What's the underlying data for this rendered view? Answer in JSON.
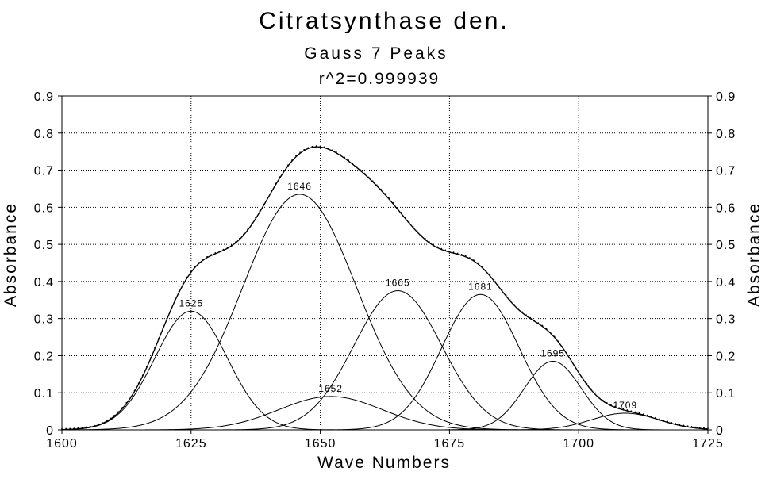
{
  "chart_data": {
    "type": "line",
    "title": "Citratsynthase den.",
    "subtitle": "Gauss 7 Peaks",
    "fit_quality": "r^2=0.999939",
    "xlabel": "Wave Numbers",
    "ylabel": "Absorbance",
    "ylabel_right": "Absorbance",
    "xlim": [
      1600,
      1725
    ],
    "ylim": [
      0,
      0.9
    ],
    "x_ticks": [
      1600,
      1625,
      1650,
      1675,
      1700,
      1725
    ],
    "x_tick_labels": [
      "1600",
      "1625",
      "1650",
      "1675",
      "1700",
      "1725"
    ],
    "y_ticks": [
      0,
      0.1,
      0.2,
      0.3,
      0.4,
      0.5,
      0.6,
      0.7,
      0.8,
      0.9
    ],
    "y_tick_labels": [
      "0",
      "0.1",
      "0.2",
      "0.3",
      "0.4",
      "0.5",
      "0.6",
      "0.7",
      "0.8",
      "0.9"
    ],
    "grid": true,
    "peaks": [
      {
        "label": "1625",
        "center": 1625,
        "amplitude": 0.32,
        "sigma": 7.0
      },
      {
        "label": "1646",
        "center": 1646,
        "amplitude": 0.635,
        "sigma": 11.0
      },
      {
        "label": "1652",
        "center": 1652,
        "amplitude": 0.09,
        "sigma": 10.0
      },
      {
        "label": "1665",
        "center": 1665,
        "amplitude": 0.375,
        "sigma": 8.5
      },
      {
        "label": "1681",
        "center": 1681,
        "amplitude": 0.365,
        "sigma": 7.5
      },
      {
        "label": "1695",
        "center": 1695,
        "amplitude": 0.185,
        "sigma": 5.5
      },
      {
        "label": "1709",
        "center": 1709,
        "amplitude": 0.045,
        "sigma": 6.5
      }
    ],
    "colors": {
      "line": "#000000",
      "grid": "#000000",
      "background": "#ffffff"
    }
  }
}
